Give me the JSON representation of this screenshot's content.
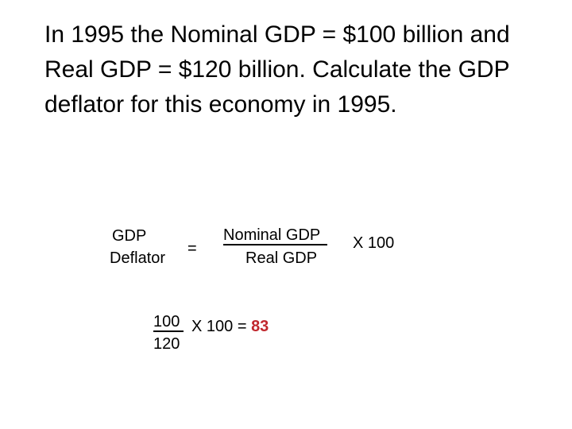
{
  "question": {
    "text": "In 1995 the Nominal GDP = $100 billion and Real GDP = $120 billion.  Calculate the GDP deflator for this economy in 1995."
  },
  "formula": {
    "lhs_line1": "GDP",
    "lhs_line2": "Deflator",
    "equals": "=",
    "numerator": "Nominal GDP",
    "denominator": "Real GDP",
    "multiplier": "X 100"
  },
  "calculation": {
    "numerator": "100",
    "denominator": "120",
    "expression": "X 100 = ",
    "answer": "83",
    "answer_color": "#c0272d"
  }
}
